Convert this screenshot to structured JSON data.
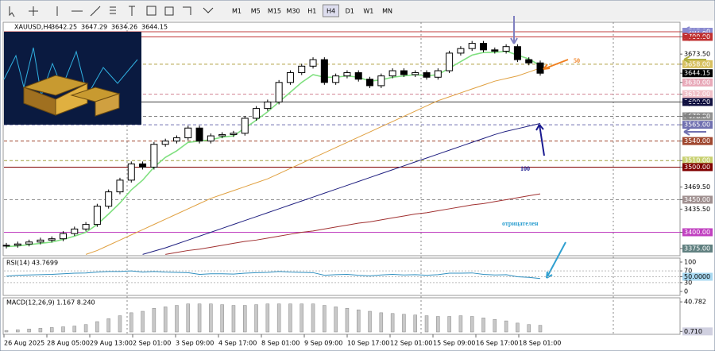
{
  "toolbar": {
    "timeframes": [
      "M1",
      "M5",
      "M15",
      "M30",
      "H1",
      "H4",
      "D1",
      "W1",
      "MN"
    ],
    "active": 5
  },
  "chart_data": {
    "type": "candlestick",
    "title": "XAUUSD,H4",
    "ohlc_header": [
      3642.25,
      3647.29,
      3634.26,
      3644.15
    ],
    "closes": [
      3380,
      3382,
      3385,
      3388,
      3390,
      3398,
      3405,
      3412,
      3440,
      3462,
      3480,
      3505,
      3500,
      3535,
      3540,
      3545,
      3560,
      3540,
      3548,
      3550,
      3552,
      3575,
      3590,
      3600,
      3630,
      3645,
      3655,
      3665,
      3630,
      3640,
      3645,
      3635,
      3625,
      3640,
      3648,
      3642,
      3645,
      3638,
      3648,
      3675,
      3682,
      3690,
      3680,
      3678,
      3685,
      3665,
      3660,
      3644.15
    ],
    "ylim": [
      3364,
      3720
    ],
    "yticks": [
      {
        "value": 3707.8,
        "label": "3707.80",
        "bg": "#8a8ad0",
        "line": "solid",
        "lc": "#c04040"
      },
      {
        "value": 3700,
        "label": "3700.00",
        "bg": "#c03030",
        "line": "solid",
        "lc": "#c03030"
      },
      {
        "value": 3673.5,
        "label": "3673.50"
      },
      {
        "value": 3658,
        "label": "3658.00",
        "bg": "#d8c060",
        "line": "dashed",
        "lc": "#b0a040"
      },
      {
        "value": 3644.15,
        "label": "3644.15",
        "bg": "#000000"
      },
      {
        "value": 3630,
        "label": "3630.00",
        "bg": "#e8a8b8"
      },
      {
        "value": 3612,
        "label": "3612.00",
        "bg": "#f0c0c8",
        "line": "dashed",
        "lc": "#d08090"
      },
      {
        "value": 3600,
        "label": "3600.00",
        "bg": "#101040",
        "line": "solid",
        "lc": "#404040"
      },
      {
        "value": 3578,
        "label": "3578.00",
        "bg": "#909090",
        "line": "dashed",
        "lc": "#808080"
      },
      {
        "value": 3565,
        "label": "3565.00",
        "bg": "#7070b0",
        "line": "dashed",
        "lc": "#7070b0"
      },
      {
        "value": 3540,
        "label": "3540.00",
        "bg": "#a04830",
        "line": "dashed",
        "lc": "#a04830"
      },
      {
        "value": 3510,
        "label": "3510.00",
        "bg": "#c8d070",
        "line": "dashed",
        "lc": "#a0a040"
      },
      {
        "value": 3500,
        "label": "3500.00",
        "bg": "#800000",
        "line": "solid",
        "lc": "#800000"
      },
      {
        "value": 3469.5,
        "label": "3469.50"
      },
      {
        "value": 3450,
        "label": "3450.00",
        "bg": "#a09090",
        "line": "dashed",
        "lc": "#909090"
      },
      {
        "value": 3435.5,
        "label": "3435.50"
      },
      {
        "value": 3400,
        "label": "3400.00",
        "bg": "#c040c0",
        "line": "solid",
        "lc": "#c040c0"
      },
      {
        "value": 3375,
        "label": "3375.00",
        "bg": "#608080"
      }
    ],
    "x_labels": [
      "26 Aug 2025",
      "28 Aug 05:00",
      "29 Aug 13:00",
      "2 Sep 01:00",
      "3 Sep 09:00",
      "4 Sep 17:00",
      "8 Sep 01:00",
      "9 Sep 09:00",
      "10 Sep 17:00",
      "12 Sep 01:00",
      "15 Sep 09:00",
      "16 Sep 17:00",
      "18 Sep 01:00"
    ],
    "ma": [
      {
        "color": "#80e080",
        "values": [
          3378,
          3379,
          3381,
          3383,
          3385,
          3389,
          3394,
          3400,
          3412,
          3428,
          3445,
          3465,
          3480,
          3500,
          3515,
          3525,
          3538,
          3540,
          3542,
          3546,
          3548,
          3560,
          3572,
          3585,
          3600,
          3615,
          3630,
          3642,
          3638,
          3638,
          3640,
          3638,
          3632,
          3634,
          3638,
          3640,
          3642,
          3640,
          3642,
          3652,
          3662,
          3672,
          3676,
          3676,
          3678,
          3672,
          3666,
          3656
        ]
      },
      {
        "color": "#e0a040",
        "values": [
          null,
          null,
          null,
          null,
          null,
          null,
          null,
          3366,
          3372,
          3380,
          3388,
          3396,
          3404,
          3412,
          3420,
          3428,
          3436,
          3444,
          3452,
          3458,
          3464,
          3470,
          3476,
          3482,
          3490,
          3498,
          3506,
          3514,
          3522,
          3530,
          3538,
          3546,
          3554,
          3562,
          3570,
          3578,
          3586,
          3594,
          3602,
          3608,
          3614,
          3620,
          3626,
          3632,
          3636,
          3640,
          3646,
          3652
        ]
      },
      {
        "color": "#202080",
        "values": [
          null,
          null,
          null,
          null,
          null,
          null,
          null,
          null,
          null,
          null,
          null,
          null,
          3366,
          3371,
          3376,
          3382,
          3388,
          3394,
          3400,
          3406,
          3412,
          3418,
          3424,
          3430,
          3436,
          3442,
          3448,
          3454,
          3460,
          3466,
          3472,
          3478,
          3484,
          3490,
          3496,
          3502,
          3508,
          3514,
          3520,
          3526,
          3532,
          3538,
          3544,
          3550,
          3555,
          3559,
          3563,
          3567
        ]
      },
      {
        "color": "#a03030",
        "values": [
          null,
          null,
          null,
          null,
          null,
          null,
          null,
          null,
          null,
          null,
          null,
          null,
          null,
          null,
          3366,
          3369,
          3372,
          3374,
          3377,
          3380,
          3383,
          3386,
          3388,
          3391,
          3394,
          3397,
          3400,
          3402,
          3405,
          3408,
          3411,
          3414,
          3416,
          3419,
          3422,
          3425,
          3428,
          3430,
          3433,
          3436,
          3439,
          3442,
          3444,
          3447,
          3450,
          3453,
          3456,
          3459
        ]
      }
    ],
    "annotations": [
      {
        "text": "50",
        "color": "#f08020"
      },
      {
        "text": "100",
        "color": "#1a1a90"
      },
      {
        "text": "отрицателен",
        "color": "#30a0d0"
      }
    ],
    "rsi": {
      "title": "RSI(14) 43.7699",
      "color": "#3090c0",
      "ylim": [
        0,
        100
      ],
      "yticks": [
        100,
        70,
        {
          "value": 50,
          "label": "50.0000"
        },
        30,
        0
      ],
      "values": [
        52,
        55,
        56,
        57,
        58,
        60,
        62,
        63,
        66,
        68,
        68,
        70,
        66,
        68,
        66,
        65,
        64,
        58,
        60,
        60,
        59,
        62,
        64,
        65,
        68,
        66,
        65,
        64,
        55,
        57,
        58,
        55,
        53,
        56,
        58,
        56,
        57,
        55,
        57,
        62,
        62,
        63,
        58,
        56,
        57,
        50,
        48,
        43.7699
      ]
    },
    "macd": {
      "title": "MACD(12,26,9) 1.167 8.240",
      "ylim": [
        0,
        42
      ],
      "yticks": [
        40.782,
        {
          "value": 0.71,
          "label": "0.710"
        }
      ],
      "values": [
        2,
        3,
        4,
        5,
        6,
        7,
        8,
        10,
        14,
        18,
        22,
        26,
        28,
        32,
        34,
        36,
        38,
        38,
        38,
        37,
        36,
        36,
        37,
        38,
        38,
        38,
        38,
        38,
        36,
        34,
        32,
        30,
        28,
        26,
        25,
        24,
        23,
        22,
        21,
        21,
        22,
        21,
        19,
        17,
        15,
        12,
        10,
        9
      ]
    }
  }
}
